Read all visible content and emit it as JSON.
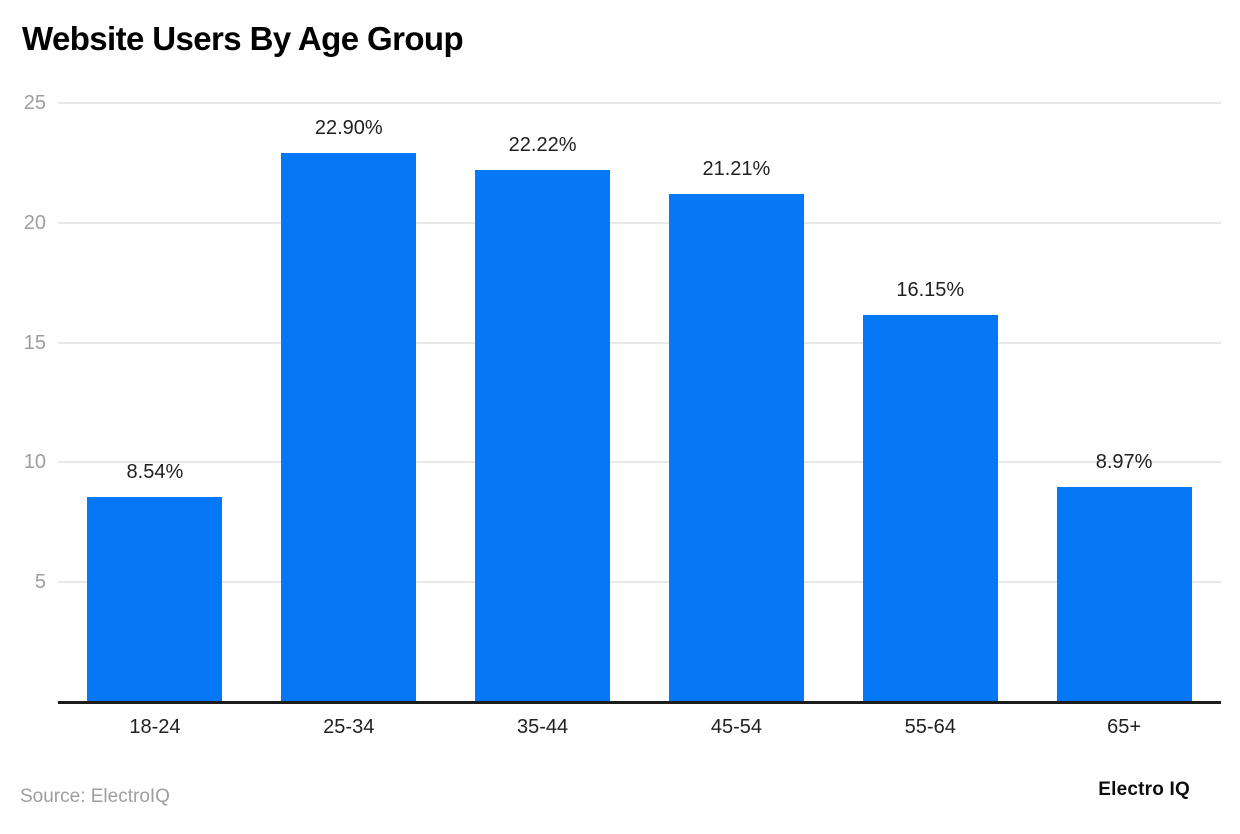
{
  "page": {
    "title": "Website Users By Age Group",
    "footer": {
      "source": "Source: ElectroIQ",
      "brand": "Electro IQ"
    }
  },
  "colors": {
    "bar": "#0478f7",
    "axis": "#1c1c1c",
    "gridline": "#e8e8e8",
    "tick_label": "#9e9e9e",
    "value_label": "#212121",
    "title": "#000000"
  },
  "chart_data": {
    "type": "bar",
    "title": "Website Users By Age Group",
    "categories": [
      "18-24",
      "25-34",
      "35-44",
      "45-54",
      "55-64",
      "65+"
    ],
    "values": [
      8.54,
      22.9,
      22.22,
      21.21,
      16.15,
      8.97
    ],
    "value_labels": [
      "8.54%",
      "22.90%",
      "22.22%",
      "21.21%",
      "16.15%",
      "8.97%"
    ],
    "xlabel": "",
    "ylabel": "",
    "ylim": [
      0,
      25
    ],
    "yticks": [
      5,
      10,
      15,
      20,
      25
    ],
    "grid": true,
    "legend": "none",
    "bar_color": "#0478f7",
    "source": "Source: ElectroIQ",
    "brand": "Electro IQ"
  }
}
